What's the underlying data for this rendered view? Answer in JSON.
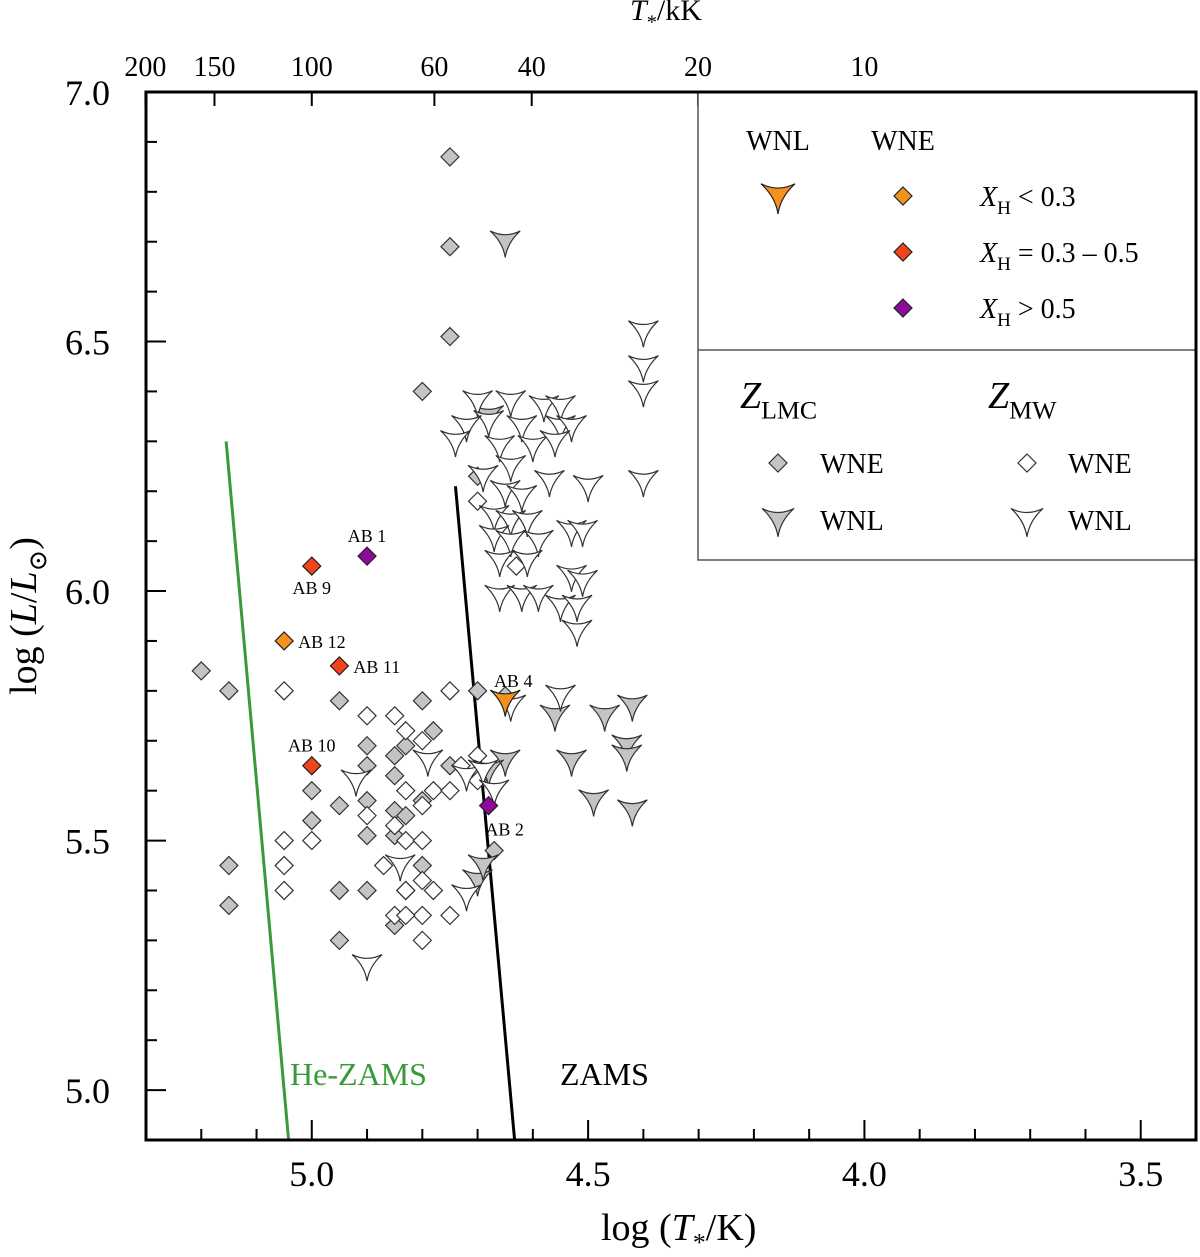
{
  "chart_data": {
    "type": "scatter",
    "xlabel": "log (T*/K)",
    "xlabel_parts": {
      "pre": "log (",
      "sym": "T",
      "sub": "*",
      "post": "/K)"
    },
    "ylabel": "log (L/L⊙)",
    "ylabel_parts": {
      "pre": "log (",
      "sym1": "L",
      "mid": "/",
      "sym2": "L",
      "sub": "⊙",
      "post": ")"
    },
    "top_axis_label": "T*/kK",
    "top_axis_parts": {
      "sym": "T",
      "sub": "*",
      "post": "/kK"
    },
    "xlim": [
      5.3,
      3.4
    ],
    "ylim": [
      4.9,
      7.0
    ],
    "x_reversed": true,
    "x_ticks": [
      "5.0",
      "4.5",
      "4.0",
      "3.5"
    ],
    "y_ticks": [
      "5.0",
      "5.5",
      "6.0",
      "6.5",
      "7.0"
    ],
    "top_ticks": [
      "200",
      "150",
      "100",
      "60",
      "40",
      "20",
      "10"
    ],
    "top_tick_values_kK": [
      200,
      150,
      100,
      60,
      40,
      20,
      10
    ],
    "lines": [
      {
        "name": "He-ZAMS",
        "color": "#3a9a3a",
        "x": [
          5.155,
          5.042
        ],
        "y": [
          6.3,
          4.9
        ]
      },
      {
        "name": "ZAMS",
        "color": "#000000",
        "x": [
          4.74,
          4.633
        ],
        "y": [
          6.21,
          4.9
        ]
      }
    ],
    "legend": {
      "placement": "top-right",
      "col_headers": [
        "WNL",
        "WNE"
      ],
      "rows": [
        "<0.3",
        "0.3 – 0.5",
        ">0.5"
      ],
      "row_prefix": "X",
      "row_sub": "H",
      "row_ops": [
        "<",
        "=",
        ">"
      ],
      "row_vals": [
        "0.3",
        "0.3 – 0.5",
        "0.5"
      ],
      "z_headers": [
        {
          "sym": "Z",
          "sub": "LMC"
        },
        {
          "sym": "Z",
          "sub": "MW"
        }
      ],
      "z_rows": [
        "WNE",
        "WNL"
      ]
    },
    "colors": {
      "lmc_fill": "#c4c4c4",
      "mw_fill": "#ffffff",
      "orange": "#f5921e",
      "red": "#f2441a",
      "purple": "#8e0a9e",
      "he_zams": "#3a9a3a",
      "zams": "#000000"
    },
    "highlighted": [
      {
        "label": "AB 1",
        "x": 4.9,
        "y": 6.07,
        "shape": "diamond",
        "color": "purple",
        "label_pos": "above"
      },
      {
        "label": "AB 9",
        "x": 5.0,
        "y": 6.05,
        "shape": "diamond",
        "color": "red",
        "label_pos": "below"
      },
      {
        "label": "AB 12",
        "x": 5.05,
        "y": 5.9,
        "shape": "diamond",
        "color": "orange",
        "label_pos": "right"
      },
      {
        "label": "AB 11",
        "x": 4.95,
        "y": 5.85,
        "shape": "diamond",
        "color": "red",
        "label_pos": "right"
      },
      {
        "label": "AB 10",
        "x": 5.0,
        "y": 5.65,
        "shape": "diamond",
        "color": "red",
        "label_pos": "above"
      },
      {
        "label": "AB 4",
        "x": 4.65,
        "y": 5.78,
        "shape": "star",
        "color": "orange",
        "label_pos": "above-right"
      },
      {
        "label": "AB 2",
        "x": 4.68,
        "y": 5.57,
        "shape": "diamond",
        "color": "purple",
        "label_pos": "below-right"
      }
    ],
    "series": [
      {
        "name": "LMC WNE",
        "shape": "diamond",
        "fill": "lmc",
        "points": [
          [
            4.75,
            6.87
          ],
          [
            4.75,
            6.69
          ],
          [
            4.75,
            6.51
          ],
          [
            4.8,
            6.4
          ],
          [
            4.7,
            6.23
          ],
          [
            5.2,
            5.84
          ],
          [
            5.15,
            5.8
          ],
          [
            4.95,
            5.78
          ],
          [
            4.8,
            5.78
          ],
          [
            4.9,
            5.69
          ],
          [
            4.85,
            5.67
          ],
          [
            4.83,
            5.69
          ],
          [
            4.78,
            5.72
          ],
          [
            4.75,
            5.65
          ],
          [
            4.9,
            5.65
          ],
          [
            4.85,
            5.63
          ],
          [
            4.9,
            5.58
          ],
          [
            4.95,
            5.57
          ],
          [
            4.85,
            5.56
          ],
          [
            4.8,
            5.58
          ],
          [
            5.0,
            5.6
          ],
          [
            5.0,
            5.54
          ],
          [
            4.9,
            5.51
          ],
          [
            4.85,
            5.51
          ],
          [
            4.83,
            5.55
          ],
          [
            4.67,
            5.48
          ],
          [
            5.15,
            5.45
          ],
          [
            4.8,
            5.45
          ],
          [
            4.95,
            5.4
          ],
          [
            4.9,
            5.4
          ],
          [
            4.83,
            5.4
          ],
          [
            4.85,
            5.33
          ],
          [
            4.95,
            5.3
          ],
          [
            5.15,
            5.37
          ],
          [
            4.7,
            5.8
          ],
          [
            4.65,
            5.79
          ]
        ]
      },
      {
        "name": "MW WNE",
        "shape": "diamond",
        "fill": "mw",
        "points": [
          [
            4.7,
            6.18
          ],
          [
            4.63,
            6.05
          ],
          [
            5.05,
            5.8
          ],
          [
            4.75,
            5.8
          ],
          [
            4.9,
            5.75
          ],
          [
            4.85,
            5.75
          ],
          [
            4.83,
            5.72
          ],
          [
            4.8,
            5.7
          ],
          [
            4.7,
            5.67
          ],
          [
            4.73,
            5.65
          ],
          [
            4.83,
            5.6
          ],
          [
            4.78,
            5.6
          ],
          [
            4.75,
            5.6
          ],
          [
            4.7,
            5.62
          ],
          [
            4.8,
            5.57
          ],
          [
            4.9,
            5.55
          ],
          [
            4.85,
            5.53
          ],
          [
            5.05,
            5.5
          ],
          [
            5.0,
            5.5
          ],
          [
            4.83,
            5.5
          ],
          [
            4.8,
            5.5
          ],
          [
            5.05,
            5.45
          ],
          [
            4.87,
            5.45
          ],
          [
            4.8,
            5.42
          ],
          [
            5.05,
            5.4
          ],
          [
            4.83,
            5.4
          ],
          [
            4.78,
            5.4
          ],
          [
            4.75,
            5.35
          ],
          [
            4.8,
            5.35
          ],
          [
            4.85,
            5.35
          ],
          [
            4.8,
            5.3
          ],
          [
            4.83,
            5.35
          ]
        ]
      },
      {
        "name": "LMC WNL",
        "shape": "star",
        "fill": "lmc",
        "points": [
          [
            4.65,
            6.7
          ],
          [
            4.68,
            6.35
          ],
          [
            4.56,
            5.75
          ],
          [
            4.47,
            5.75
          ],
          [
            4.42,
            5.77
          ],
          [
            4.43,
            5.69
          ],
          [
            4.53,
            5.66
          ],
          [
            4.43,
            5.67
          ],
          [
            4.65,
            5.66
          ],
          [
            4.68,
            5.64
          ],
          [
            4.49,
            5.58
          ],
          [
            4.42,
            5.56
          ],
          [
            4.7,
            5.42
          ],
          [
            4.69,
            5.45
          ]
        ]
      },
      {
        "name": "MW WNL",
        "shape": "star",
        "fill": "mw",
        "points": [
          [
            4.4,
            6.52
          ],
          [
            4.4,
            6.45
          ],
          [
            4.4,
            6.4
          ],
          [
            4.7,
            6.38
          ],
          [
            4.64,
            6.38
          ],
          [
            4.58,
            6.37
          ],
          [
            4.55,
            6.37
          ],
          [
            4.68,
            6.34
          ],
          [
            4.72,
            6.33
          ],
          [
            4.62,
            6.33
          ],
          [
            4.55,
            6.33
          ],
          [
            4.53,
            6.33
          ],
          [
            4.74,
            6.3
          ],
          [
            4.66,
            6.29
          ],
          [
            4.6,
            6.29
          ],
          [
            4.56,
            6.3
          ],
          [
            4.64,
            6.25
          ],
          [
            4.69,
            6.23
          ],
          [
            4.57,
            6.22
          ],
          [
            4.4,
            6.22
          ],
          [
            4.5,
            6.21
          ],
          [
            4.65,
            6.2
          ],
          [
            4.62,
            6.19
          ],
          [
            4.67,
            6.15
          ],
          [
            4.64,
            6.14
          ],
          [
            4.61,
            6.14
          ],
          [
            4.53,
            6.12
          ],
          [
            4.51,
            6.12
          ],
          [
            4.67,
            6.11
          ],
          [
            4.64,
            6.1
          ],
          [
            4.59,
            6.1
          ],
          [
            4.66,
            6.06
          ],
          [
            4.61,
            6.06
          ],
          [
            4.53,
            6.03
          ],
          [
            4.51,
            6.02
          ],
          [
            4.66,
            5.99
          ],
          [
            4.62,
            5.99
          ],
          [
            4.59,
            5.99
          ],
          [
            4.55,
            5.97
          ],
          [
            4.52,
            5.97
          ],
          [
            4.52,
            5.92
          ],
          [
            4.55,
            5.79
          ],
          [
            4.64,
            5.77
          ],
          [
            4.72,
            5.63
          ],
          [
            4.69,
            5.64
          ],
          [
            4.67,
            5.6
          ],
          [
            4.79,
            5.66
          ],
          [
            4.92,
            5.62
          ],
          [
            4.84,
            5.45
          ],
          [
            4.72,
            5.39
          ],
          [
            4.9,
            5.25
          ]
        ]
      }
    ]
  }
}
